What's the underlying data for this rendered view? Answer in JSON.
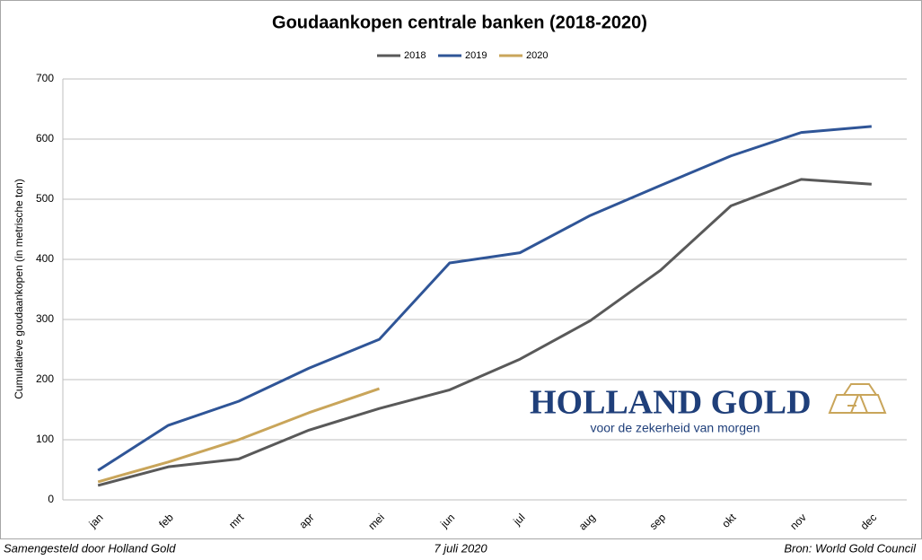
{
  "chart_data": {
    "type": "line",
    "title": "Goudaankopen centrale banken (2018-2020)",
    "ylabel": "Cumulatieve goudaankopen (in metrische ton)",
    "categories": [
      "jan",
      "feb",
      "mrt",
      "apr",
      "mei",
      "jun",
      "jul",
      "aug",
      "sep",
      "okt",
      "nov",
      "dec"
    ],
    "series": [
      {
        "name": "2018",
        "color": "#595959",
        "values": [
          24,
          55,
          68,
          116,
          152,
          183,
          234,
          298,
          382,
          489,
          533,
          525
        ]
      },
      {
        "name": "2019",
        "color": "#2f5597",
        "values": [
          49,
          124,
          164,
          219,
          267,
          394,
          411,
          473,
          523,
          572,
          611,
          621
        ]
      },
      {
        "name": "2020",
        "color": "#c9a55a",
        "values": [
          30,
          63,
          100,
          145,
          185,
          null,
          null,
          null,
          null,
          null,
          null,
          null
        ]
      }
    ],
    "ylim": [
      0,
      700
    ],
    "yticks": [
      0,
      100,
      200,
      300,
      400,
      500,
      600,
      700
    ],
    "grid": true,
    "legend": "top",
    "logo": {
      "name": "HOLLAND GOLD",
      "tagline": "voor de zekerheid van morgen"
    },
    "footer": {
      "left": "Samengesteld door Holland Gold",
      "center": "7 juli 2020",
      "right": "Bron: World Gold Council"
    }
  }
}
